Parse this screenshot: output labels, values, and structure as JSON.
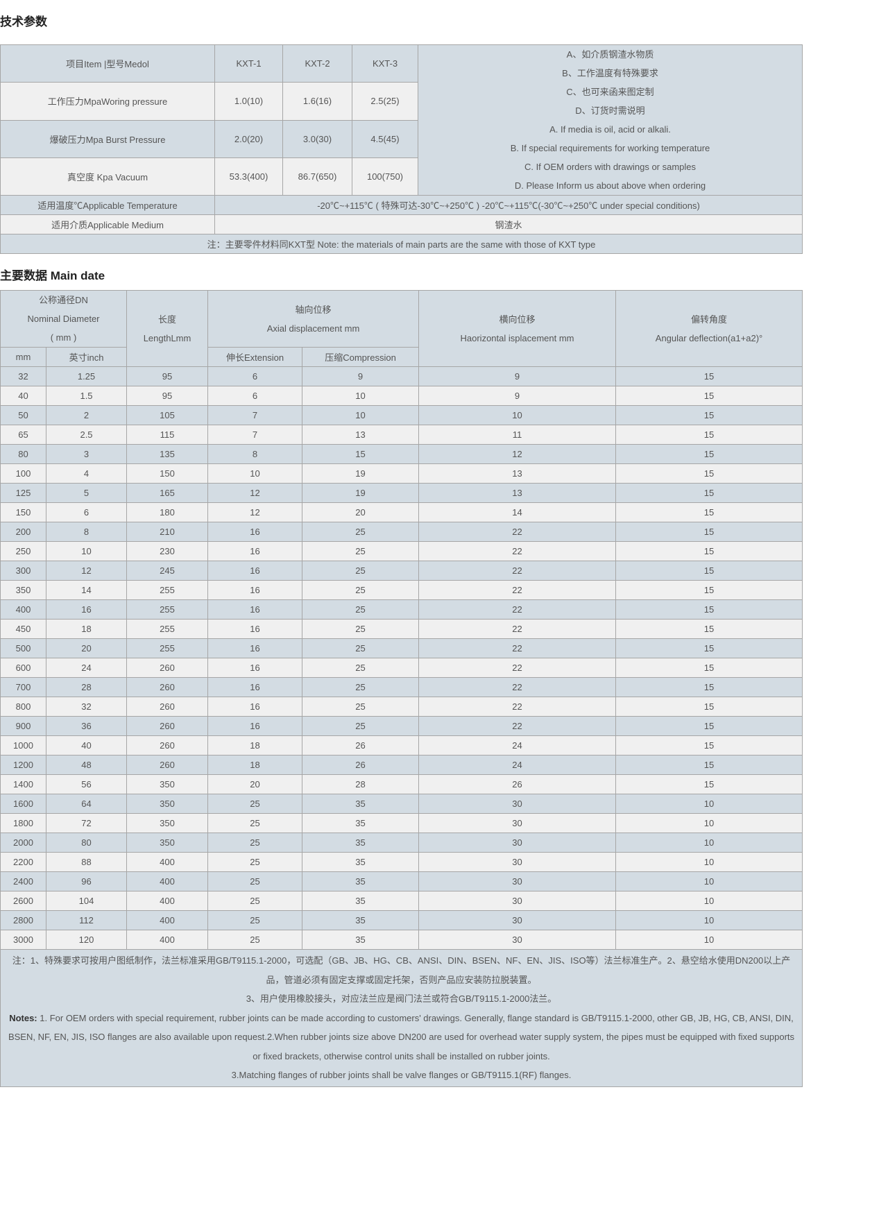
{
  "tech": {
    "title": "技术参数",
    "header": {
      "item": "项目Item |型号Medol",
      "models": [
        "KXT-1",
        "KXT-2",
        "KXT-3"
      ]
    },
    "rows": [
      {
        "label": "工作压力MpaWoring pressure",
        "values": [
          "1.0(10)",
          "1.6(16)",
          "2.5(25)"
        ]
      },
      {
        "label": "爆破压力Mpa Burst Pressure",
        "values": [
          "2.0(20)",
          "3.0(30)",
          "4.5(45)"
        ]
      },
      {
        "label": "真空度 Kpa Vacuum",
        "values": [
          "53.3(400)",
          "86.7(650)",
          "100(750)"
        ]
      }
    ],
    "side_notes": [
      "A、如介质钢渣水物质",
      "B、工作温度有特殊要求",
      "C、也可来函来图定制",
      "D、订货时需说明",
      "A. If media is oil, acid or alkali.",
      "B. If special requirements for working temperature",
      "C. If OEM orders with drawings or samples",
      "D. Please Inform us about above when ordering"
    ],
    "temp_label": "适用温度℃Applicable Temperature",
    "temp_value": "-20℃~+115℃ ( 特殊可达-30℃~+250℃ ) -20℃~+115℃(-30℃~+250℃ under special conditions)",
    "medium_label": "适用介质Applicable Medium",
    "medium_value": "钢渣水",
    "note": "注：主要零件材料同KXT型 Note: the materials of main parts are the same with those of KXT type"
  },
  "main": {
    "title": "主要数据 Main date",
    "headers": {
      "dn": [
        "公称通径DN",
        "Nominal Diameter",
        "( mm )"
      ],
      "mm": "mm",
      "inch": "英寸inch",
      "length": [
        "长度",
        "LengthLmm"
      ],
      "axial": [
        "轴向位移",
        "Axial displacement mm"
      ],
      "ext": "伸长Extension",
      "comp": "压缩Compression",
      "horiz": [
        "横向位移",
        "Haorizontal isplacement mm"
      ],
      "angular": [
        "偏转角度",
        "Angular deflection(a1+a2)°"
      ]
    },
    "rows": [
      [
        "32",
        "1.25",
        "95",
        "6",
        "9",
        "9",
        "15"
      ],
      [
        "40",
        "1.5",
        "95",
        "6",
        "10",
        "9",
        "15"
      ],
      [
        "50",
        "2",
        "105",
        "7",
        "10",
        "10",
        "15"
      ],
      [
        "65",
        "2.5",
        "115",
        "7",
        "13",
        "11",
        "15"
      ],
      [
        "80",
        "3",
        "135",
        "8",
        "15",
        "12",
        "15"
      ],
      [
        "100",
        "4",
        "150",
        "10",
        "19",
        "13",
        "15"
      ],
      [
        "125",
        "5",
        "165",
        "12",
        "19",
        "13",
        "15"
      ],
      [
        "150",
        "6",
        "180",
        "12",
        "20",
        "14",
        "15"
      ],
      [
        "200",
        "8",
        "210",
        "16",
        "25",
        "22",
        "15"
      ],
      [
        "250",
        "10",
        "230",
        "16",
        "25",
        "22",
        "15"
      ],
      [
        "300",
        "12",
        "245",
        "16",
        "25",
        "22",
        "15"
      ],
      [
        "350",
        "14",
        "255",
        "16",
        "25",
        "22",
        "15"
      ],
      [
        "400",
        "16",
        "255",
        "16",
        "25",
        "22",
        "15"
      ],
      [
        "450",
        "18",
        "255",
        "16",
        "25",
        "22",
        "15"
      ],
      [
        "500",
        "20",
        "255",
        "16",
        "25",
        "22",
        "15"
      ],
      [
        "600",
        "24",
        "260",
        "16",
        "25",
        "22",
        "15"
      ],
      [
        "700",
        "28",
        "260",
        "16",
        "25",
        "22",
        "15"
      ],
      [
        "800",
        "32",
        "260",
        "16",
        "25",
        "22",
        "15"
      ],
      [
        "900",
        "36",
        "260",
        "16",
        "25",
        "22",
        "15"
      ],
      [
        "1000",
        "40",
        "260",
        "18",
        "26",
        "24",
        "15"
      ],
      [
        "1200",
        "48",
        "260",
        "18",
        "26",
        "24",
        "15"
      ],
      [
        "1400",
        "56",
        "350",
        "20",
        "28",
        "26",
        "15"
      ],
      [
        "1600",
        "64",
        "350",
        "25",
        "35",
        "30",
        "10"
      ],
      [
        "1800",
        "72",
        "350",
        "25",
        "35",
        "30",
        "10"
      ],
      [
        "2000",
        "80",
        "350",
        "25",
        "35",
        "30",
        "10"
      ],
      [
        "2200",
        "88",
        "400",
        "25",
        "35",
        "30",
        "10"
      ],
      [
        "2400",
        "96",
        "400",
        "25",
        "35",
        "30",
        "10"
      ],
      [
        "2600",
        "104",
        "400",
        "25",
        "35",
        "30",
        "10"
      ],
      [
        "2800",
        "112",
        "400",
        "25",
        "35",
        "30",
        "10"
      ],
      [
        "3000",
        "120",
        "400",
        "25",
        "35",
        "30",
        "10"
      ]
    ],
    "notes": {
      "cn1": "注：1、特殊要求可按用户图纸制作，法兰标准采用GB/T9115.1-2000，可选配（GB、JB、HG、CB、ANSI、DIN、BSEN、NF、EN、JIS、ISO等）法兰标准生产。2、悬空给水使用DN200以上产品，管道必须有固定支撑或固定托架，否则产品应安装防拉脱装置。",
      "cn2": "3、用户使用橡胶接头，对应法兰应是阀门法兰或符合GB/T9115.1-2000法兰。",
      "en_label": "Notes:",
      "en1": " 1. For OEM orders with special requirement, rubber joints can be made according to customers' drawings. Generally, flange standard is GB/T9115.1-2000, other GB, JB, HG, CB, ANSI, DIN, BSEN, NF, EN, JIS, ISO flanges are also available upon request.2.When rubber joints size above DN200 are used for overhead water supply system, the pipes must be equipped with fixed supports or fixed brackets, otherwise control units shall be installed on rubber joints.",
      "en2": "3.Matching flanges of rubber joints shall be valve flanges or GB/T9115.1(RF) flanges."
    }
  },
  "colors": {
    "row_blue": "#d3dce3",
    "row_light": "#f0f0f0",
    "border": "#a6a6a6"
  }
}
